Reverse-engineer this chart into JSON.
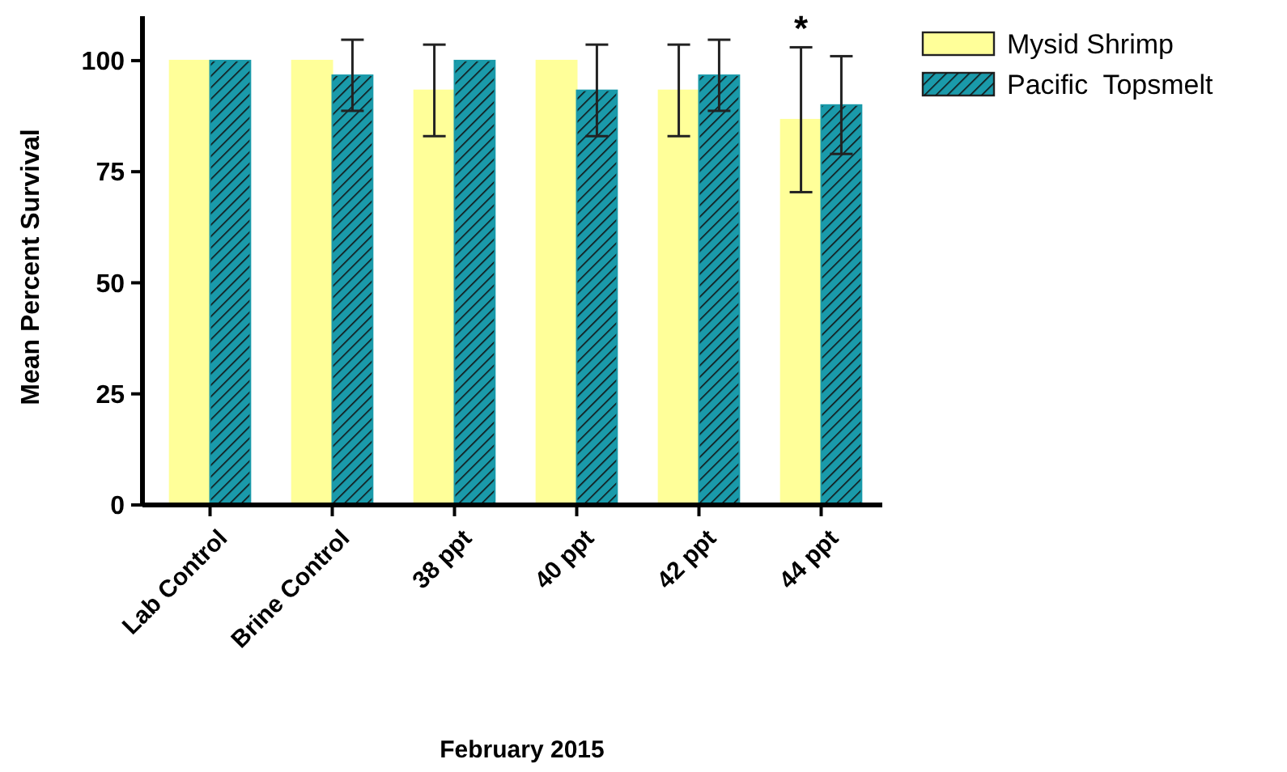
{
  "chart_data": {
    "type": "bar",
    "xlabel": "February 2015",
    "ylabel": "Mean Percent Survival",
    "categories": [
      "Lab Control",
      "Brine Control",
      "38 ppt",
      "40 ppt",
      "42 ppt",
      "44 ppt"
    ],
    "series": [
      {
        "name": "Mysid Shrimp",
        "color": "#ffff99",
        "values": [
          100,
          100,
          93.3,
          100,
          93.3,
          86.7
        ],
        "errors": [
          null,
          null,
          10.3,
          null,
          10.3,
          16.3
        ]
      },
      {
        "name": "Pacific  Topsmelt",
        "color": "#1a9aaa",
        "values": [
          100,
          96.7,
          100,
          93.3,
          96.7,
          90
        ],
        "errors": [
          null,
          8,
          null,
          10.3,
          8,
          11
        ]
      }
    ],
    "ylim": [
      0,
      110
    ],
    "yticks": [
      0,
      25,
      50,
      75,
      100
    ],
    "annotations": [
      "*"
    ],
    "legend": "top right"
  }
}
